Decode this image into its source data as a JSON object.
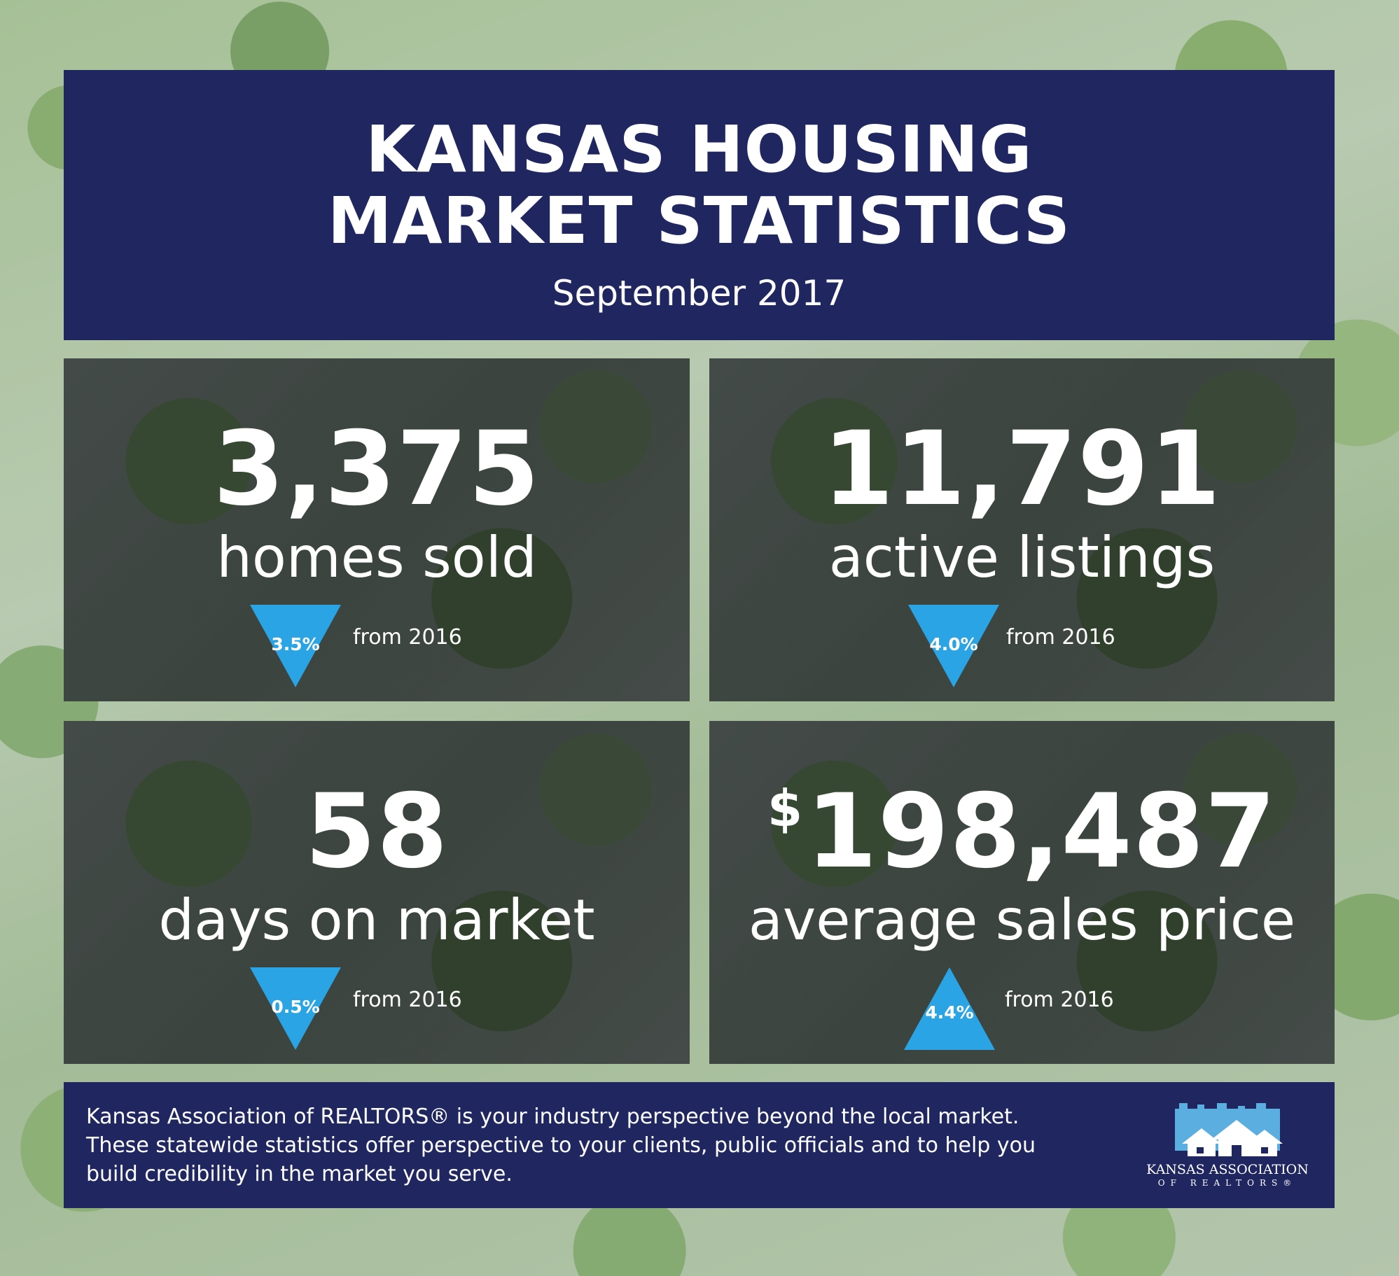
{
  "header": {
    "title_line1": "KANSAS HOUSING",
    "title_line2": "MARKET STATISTICS",
    "subtitle": "September 2017"
  },
  "stats": [
    {
      "value": "3,375",
      "label": "homes sold",
      "direction": "down",
      "change": "3.5%",
      "comparison": "from 2016"
    },
    {
      "value": "11,791",
      "label": "active listings",
      "direction": "down",
      "change": "4.0%",
      "comparison": "from 2016"
    },
    {
      "value": "58",
      "label": "days on market",
      "direction": "down",
      "change": "0.5%",
      "comparison": "from 2016"
    },
    {
      "currency": "$",
      "value": "198,487",
      "label": "average sales price",
      "direction": "up",
      "change": "4.4%",
      "comparison": "from 2016"
    }
  ],
  "footer": {
    "text_line1": "Kansas Association of REALTORS® is your industry perspective beyond the local market.",
    "text_line2": "These statewide statistics offer perspective to your clients, public officials and to help you",
    "text_line3": "build credibility in the market you serve.",
    "logo_name": "KANSAS ASSOCIATION",
    "logo_sub": "OF REALTORS®"
  },
  "colors": {
    "panel": "#1f2660",
    "arrow": "#2aa4e4",
    "text": "#ffffff"
  }
}
